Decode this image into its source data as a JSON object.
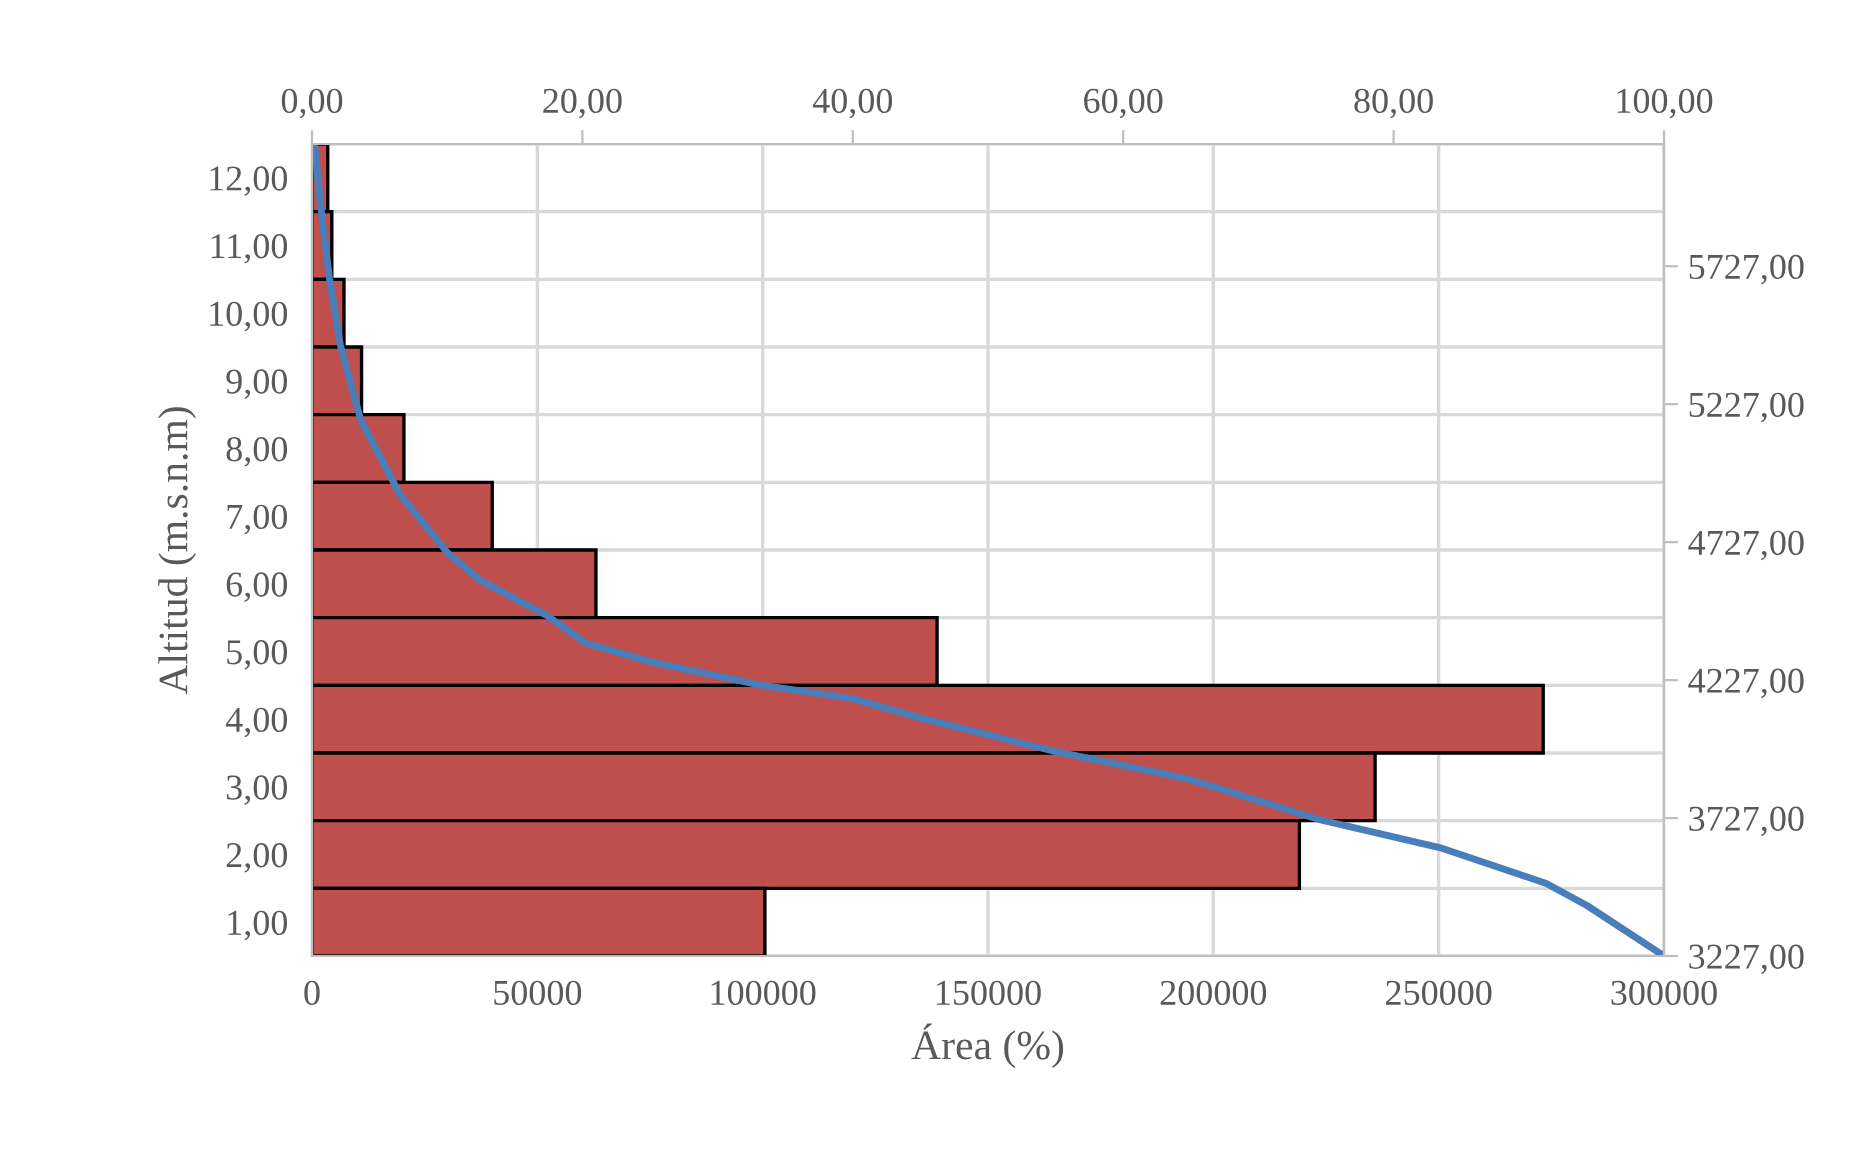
{
  "chart_data": [
    {
      "type": "bar",
      "orientation": "horizontal",
      "xlabel": "Área (%)",
      "ylabel": "Altitud (m.s.n.m)",
      "categories": [
        "12,00",
        "11,00",
        "10,00",
        "9,00",
        "8,00",
        "7,00",
        "6,00",
        "5,00",
        "4,00",
        "3,00",
        "2,00",
        "1,00"
      ],
      "series": [
        {
          "color": "#c0504d",
          "values": [
            3500,
            4400,
            7100,
            11000,
            20400,
            40000,
            63000,
            138700,
            273200,
            235900,
            219100,
            100500
          ]
        }
      ],
      "xlim": [
        0,
        300000
      ],
      "xticks": [
        0,
        50000,
        100000,
        150000,
        200000,
        250000,
        300000
      ],
      "grid": true
    },
    {
      "type": "line",
      "series": [
        {
          "color": "#4a7ebb",
          "x": [
            100,
            94.3,
            91.3,
            83.4,
            74.6,
            64.7,
            54.8,
            45.0,
            40.0,
            33.1,
            25.3,
            20.3,
            17.4,
            12.4,
            10.0,
            6.5,
            3.6,
            2.1,
            1.3,
            0.7,
            0.2
          ],
          "values": [
            3227,
            3410,
            3490,
            3620,
            3720,
            3870,
            3970,
            4090,
            4160,
            4210,
            4290,
            4360,
            4460,
            4590,
            4690,
            4900,
            5170,
            5440,
            5680,
            5920,
            6160
          ]
        }
      ],
      "xlim": [
        0,
        100
      ],
      "xticks": [
        {
          "value": 0,
          "label": "0,00"
        },
        {
          "value": 20,
          "label": "20,00"
        },
        {
          "value": 40,
          "label": "40,00"
        },
        {
          "value": 60,
          "label": "60,00"
        },
        {
          "value": 80,
          "label": "80,00"
        },
        {
          "value": 100,
          "label": "100,00"
        }
      ],
      "ylim": [
        3227,
        6170
      ],
      "yticks": [
        {
          "value": 3227,
          "label": "3227,00"
        },
        {
          "value": 3727,
          "label": "3727,00"
        },
        {
          "value": 4227,
          "label": "4227,00"
        },
        {
          "value": 4727,
          "label": "4727,00"
        },
        {
          "value": 5227,
          "label": "5227,00"
        },
        {
          "value": 5727,
          "label": "5727,00"
        }
      ],
      "line_style": "solid",
      "marker": "none"
    }
  ]
}
